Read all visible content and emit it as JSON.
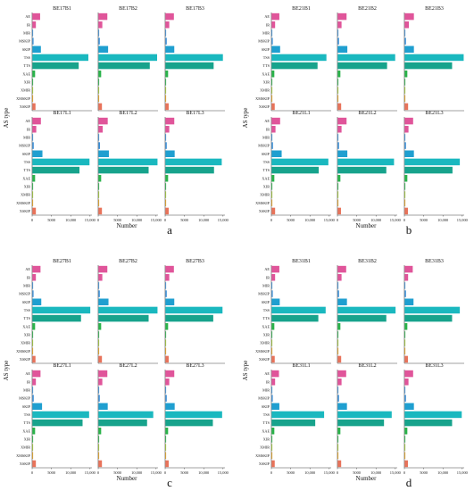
{
  "chart_data": {
    "type": "bar",
    "orientation": "horizontal",
    "categories": [
      "AE",
      "IR",
      "MIR",
      "MSKIP",
      "SKIP",
      "TSS",
      "TTS",
      "XAE",
      "XIR",
      "XMIR",
      "XMSKIP",
      "XSKIP"
    ],
    "category_colors": [
      "#e0559a",
      "#e0559a",
      "#3a8fd8",
      "#3a8fd8",
      "#1f9fd0",
      "#1ab8bf",
      "#17a38c",
      "#2ab34a",
      "#2ab34a",
      "#9ec82e",
      "#e8a317",
      "#e8735a"
    ],
    "xticks": [
      "0",
      "5000",
      "10,000",
      "15,000"
    ],
    "xlim": [
      0,
      15500
    ],
    "xlabel": "Number",
    "ylabel": "AS type",
    "groups": [
      {
        "letter": "a",
        "panels": [
          {
            "title": "BE17B1",
            "values": [
              2000,
              900,
              40,
              300,
              2200,
              14500,
              12000,
              700,
              150,
              40,
              50,
              800
            ]
          },
          {
            "title": "BE17B2",
            "values": [
              2300,
              1000,
              40,
              350,
              2500,
              15200,
              13300,
              700,
              150,
              40,
              50,
              900
            ]
          },
          {
            "title": "BE17B3",
            "values": [
              2200,
              1000,
              40,
              350,
              2300,
              14900,
              12500,
              700,
              150,
              40,
              50,
              850
            ]
          },
          {
            "title": "BE17L1",
            "values": [
              2200,
              1000,
              40,
              350,
              2600,
              14800,
              12200,
              700,
              150,
              40,
              50,
              900
            ]
          },
          {
            "title": "BE17L2",
            "values": [
              2400,
              1100,
              40,
              400,
              2700,
              15300,
              13000,
              700,
              150,
              40,
              50,
              900
            ]
          },
          {
            "title": "BE17L3",
            "values": [
              2300,
              1000,
              40,
              350,
              2400,
              14600,
              12600,
              700,
              150,
              40,
              50,
              850
            ]
          }
        ]
      },
      {
        "letter": "b",
        "panels": [
          {
            "title": "BE21B1",
            "values": [
              2000,
              900,
              40,
              300,
              2200,
              14200,
              11900,
              700,
              150,
              40,
              50,
              800
            ]
          },
          {
            "title": "BE21B2",
            "values": [
              2300,
              1000,
              40,
              350,
              2500,
              14900,
              12800,
              700,
              150,
              40,
              50,
              900
            ]
          },
          {
            "title": "BE21B3",
            "values": [
              2400,
              1100,
              40,
              350,
              2400,
              15300,
              12300,
              700,
              150,
              40,
              50,
              900
            ]
          },
          {
            "title": "BE21L1",
            "values": [
              2200,
              1000,
              40,
              350,
              2600,
              14700,
              12200,
              700,
              150,
              40,
              50,
              900
            ]
          },
          {
            "title": "BE21L2",
            "values": [
              2300,
              1000,
              40,
              350,
              2500,
              14600,
              12600,
              700,
              150,
              40,
              50,
              850
            ]
          },
          {
            "title": "BE21L3",
            "values": [
              2200,
              1000,
              40,
              350,
              2400,
              14300,
              12400,
              700,
              150,
              40,
              50,
              850
            ]
          }
        ]
      },
      {
        "letter": "c",
        "panels": [
          {
            "title": "BE27B1",
            "values": [
              2100,
              900,
              40,
              300,
              2300,
              15000,
              12600,
              700,
              150,
              40,
              50,
              800
            ]
          },
          {
            "title": "BE27B2",
            "values": [
              2300,
              1000,
              40,
              350,
              2600,
              15300,
              13000,
              700,
              150,
              40,
              50,
              900
            ]
          },
          {
            "title": "BE27B3",
            "values": [
              2200,
              1000,
              40,
              350,
              2300,
              14800,
              12400,
              700,
              150,
              40,
              50,
              850
            ]
          },
          {
            "title": "BE27L1",
            "values": [
              2100,
              900,
              40,
              350,
              2500,
              14700,
              13000,
              700,
              150,
              40,
              50,
              900
            ]
          },
          {
            "title": "BE27L2",
            "values": [
              2300,
              1000,
              40,
              350,
              2400,
              14200,
              12600,
              700,
              150,
              40,
              50,
              900
            ]
          },
          {
            "title": "BE27L3",
            "values": [
              2300,
              1000,
              40,
              350,
              2400,
              14700,
              12300,
              700,
              150,
              40,
              50,
              850
            ]
          }
        ]
      },
      {
        "letter": "d",
        "panels": [
          {
            "title": "BE31B1",
            "values": [
              2000,
              900,
              40,
              300,
              2100,
              14000,
              12100,
              700,
              150,
              40,
              50,
              800
            ]
          },
          {
            "title": "BE31B2",
            "values": [
              2200,
              1000,
              40,
              350,
              2400,
              15000,
              12600,
              700,
              150,
              40,
              50,
              900
            ]
          },
          {
            "title": "BE31B3",
            "values": [
              2100,
              900,
              40,
              350,
              2300,
              14300,
              12300,
              700,
              150,
              40,
              50,
              850
            ]
          },
          {
            "title": "BE31L1",
            "values": [
              1900,
              900,
              40,
              300,
              2000,
              13600,
              11300,
              700,
              150,
              40,
              50,
              800
            ]
          },
          {
            "title": "BE31L2",
            "values": [
              2200,
              1000,
              40,
              350,
              2400,
              14000,
              12000,
              700,
              150,
              40,
              50,
              900
            ]
          },
          {
            "title": "BE31L3",
            "values": [
              2200,
              1000,
              40,
              350,
              2400,
              14800,
              12300,
              700,
              150,
              40,
              50,
              850
            ]
          }
        ]
      }
    ]
  }
}
